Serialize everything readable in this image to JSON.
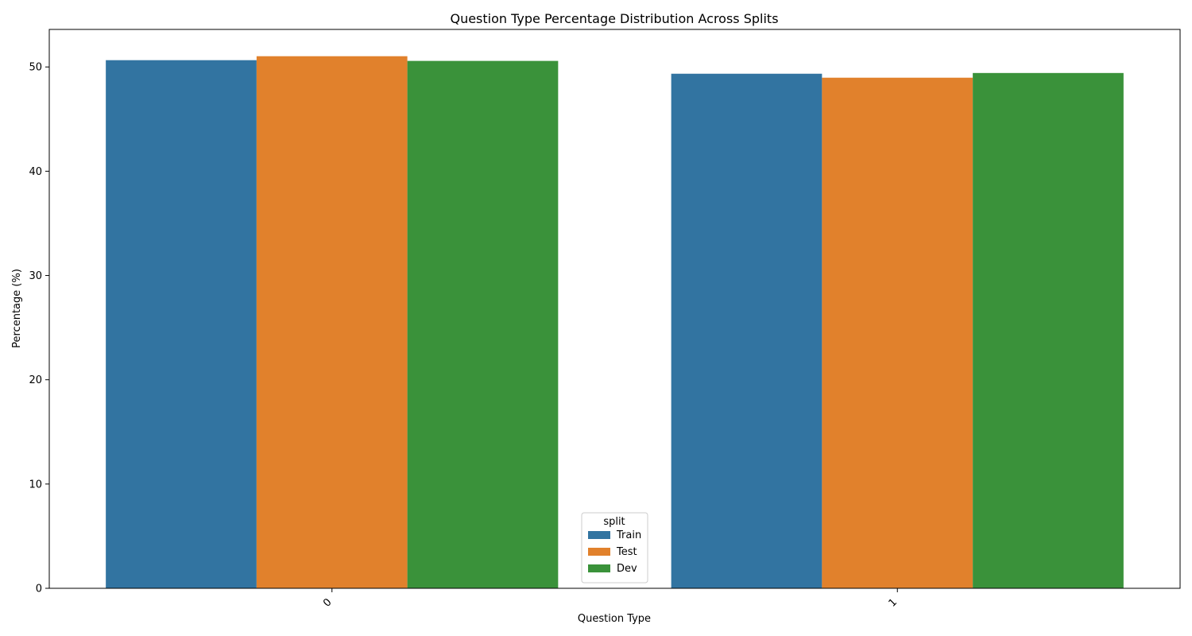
{
  "chart_data": {
    "type": "bar",
    "title": "Question Type Percentage Distribution Across Splits",
    "xlabel": "Question Type",
    "ylabel": "Percentage (%)",
    "categories": [
      "0",
      "1"
    ],
    "series": [
      {
        "name": "Train",
        "values": [
          50.65,
          49.35
        ],
        "color": "#3274a1"
      },
      {
        "name": "Test",
        "values": [
          51.03,
          48.97
        ],
        "color": "#e1812c"
      },
      {
        "name": "Dev",
        "values": [
          50.58,
          49.42
        ],
        "color": "#3a923a"
      }
    ],
    "yticks": [
      0,
      10,
      20,
      30,
      40,
      50
    ],
    "ylim": [
      0,
      53.6
    ],
    "grid": false,
    "legend": {
      "title": "split",
      "placement": "lower-center"
    }
  }
}
